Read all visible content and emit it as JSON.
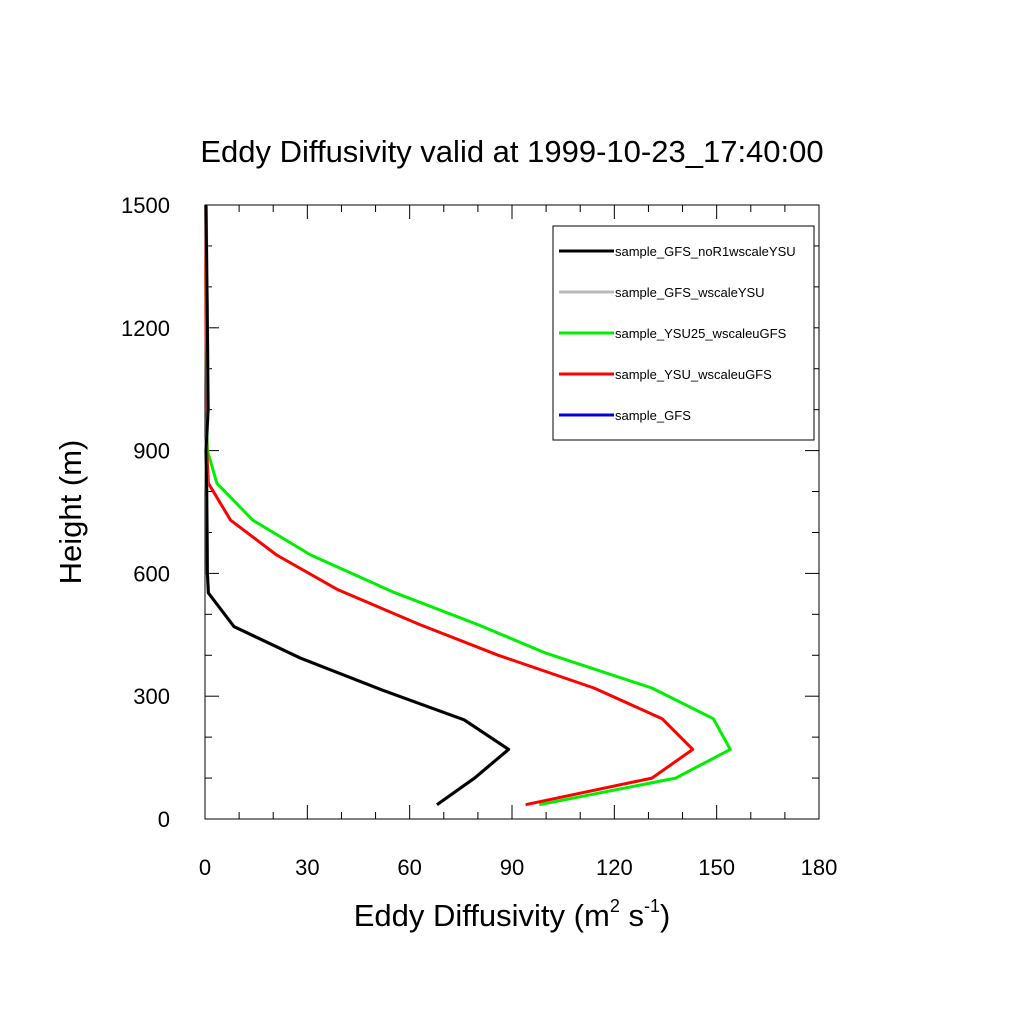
{
  "chart_data": {
    "type": "line",
    "title": "Eddy Diffusivity valid at 1999-10-23_17:40:00",
    "xlabel_main": "Eddy Diffusivity (m",
    "xlabel_sup1": "2",
    "xlabel_mid": " s",
    "xlabel_sup2": "-1",
    "xlabel_end": ")",
    "ylabel": "Height (m)",
    "xlim": [
      0,
      180
    ],
    "ylim": [
      0,
      1500
    ],
    "xticks": [
      "0",
      "30",
      "60",
      "90",
      "120",
      "150",
      "180"
    ],
    "yticks": [
      "0",
      "300",
      "600",
      "900",
      "1200",
      "1500"
    ],
    "legend_position": "top-right",
    "series": [
      {
        "name": "sample_GFS_noR1wscaleYSU",
        "color": "#000000",
        "points": [
          [
            68,
            35
          ],
          [
            79,
            100
          ],
          [
            89,
            170
          ],
          [
            76,
            242
          ],
          [
            52,
            315
          ],
          [
            28,
            393
          ],
          [
            8.5,
            470
          ],
          [
            1,
            552
          ],
          [
            0.7,
            600
          ],
          [
            0.5,
            800
          ],
          [
            0.3,
            900
          ],
          [
            0.9,
            1000
          ],
          [
            0.7,
            1200
          ],
          [
            0.3,
            1500
          ]
        ]
      },
      {
        "name": "sample_GFS_wscaleYSU",
        "color": "#bbbbbb",
        "points": [
          [
            68,
            35
          ],
          [
            79,
            100
          ],
          [
            89,
            170
          ],
          [
            76,
            242
          ],
          [
            52,
            315
          ],
          [
            28,
            393
          ],
          [
            8.5,
            470
          ],
          [
            1,
            552
          ],
          [
            0.7,
            600
          ],
          [
            0.5,
            800
          ],
          [
            0.3,
            900
          ],
          [
            0.9,
            1000
          ],
          [
            0.7,
            1200
          ],
          [
            0.3,
            1500
          ]
        ]
      },
      {
        "name": "sample_YSU25_wscaleuGFS",
        "color": "#00ee00",
        "points": [
          [
            98,
            35
          ],
          [
            138,
            100
          ],
          [
            154,
            170
          ],
          [
            149,
            245
          ],
          [
            131,
            320
          ],
          [
            100,
            405
          ],
          [
            80,
            475
          ],
          [
            55,
            555
          ],
          [
            31,
            645
          ],
          [
            14,
            730
          ],
          [
            3.5,
            820
          ],
          [
            0.7,
            900
          ],
          [
            0.5,
            1000
          ],
          [
            0.3,
            1200
          ],
          [
            0.2,
            1500
          ]
        ]
      },
      {
        "name": "sample_YSU_wscaleuGFS",
        "color": "#ff0000",
        "points": [
          [
            94,
            35
          ],
          [
            131,
            100
          ],
          [
            143,
            170
          ],
          [
            134,
            245
          ],
          [
            114,
            320
          ],
          [
            86,
            400
          ],
          [
            63,
            475
          ],
          [
            39,
            560
          ],
          [
            21,
            645
          ],
          [
            7.5,
            730
          ],
          [
            1,
            820
          ],
          [
            0.5,
            900
          ],
          [
            0.5,
            1000
          ],
          [
            0.3,
            1200
          ],
          [
            0.2,
            1500
          ]
        ]
      },
      {
        "name": "sample_GFS",
        "color": "#0000dd",
        "points": [
          [
            68,
            35
          ],
          [
            79,
            100
          ],
          [
            89,
            170
          ],
          [
            76,
            242
          ],
          [
            52,
            315
          ],
          [
            28,
            393
          ],
          [
            8.5,
            470
          ],
          [
            1,
            552
          ],
          [
            0.7,
            600
          ],
          [
            0.5,
            800
          ],
          [
            0.3,
            900
          ],
          [
            0.9,
            1000
          ],
          [
            0.7,
            1200
          ],
          [
            0.3,
            1500
          ]
        ]
      }
    ]
  }
}
